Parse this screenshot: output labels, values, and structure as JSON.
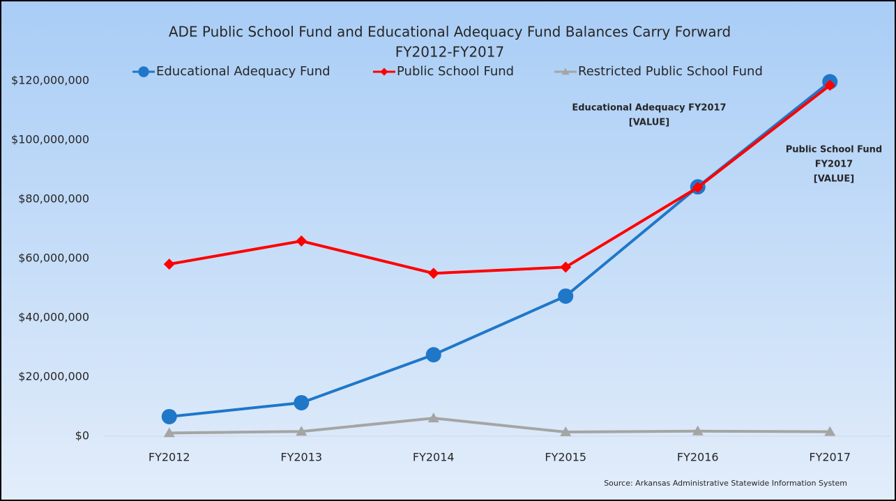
{
  "chart_data": {
    "type": "line",
    "title": [
      "ADE Public School Fund and Educational Adequacy Fund Balances Carry Forward",
      "FY2012-FY2017"
    ],
    "categories": [
      "FY2012",
      "FY2013",
      "FY2014",
      "FY2015",
      "FY2016",
      "FY2017"
    ],
    "series": [
      {
        "name": "Educational Adequacy Fund",
        "color": "#1f77c8",
        "marker": "circle",
        "values": [
          6600000,
          11300000,
          27500000,
          47300000,
          84200000,
          119700000
        ]
      },
      {
        "name": "Public School Fund",
        "color": "#ff0000",
        "marker": "diamond",
        "values": [
          58100000,
          65900000,
          55000000,
          57100000,
          84000000,
          118500000
        ]
      },
      {
        "name": "Restricted Public School Fund",
        "color": "#a5a5a5",
        "marker": "triangle",
        "values": [
          1100000,
          1600000,
          6100000,
          1400000,
          1700000,
          1500000
        ]
      }
    ],
    "ylim": [
      0,
      120000000
    ],
    "yticks": [
      {
        "value": 0,
        "label": "$0"
      },
      {
        "value": 20000000,
        "label": "$20,000,000"
      },
      {
        "value": 40000000,
        "label": "$40,000,000"
      },
      {
        "value": 60000000,
        "label": "$60,000,000"
      },
      {
        "value": 80000000,
        "label": "$80,000,000"
      },
      {
        "value": 100000000,
        "label": "$100,000,000"
      },
      {
        "value": 120000000,
        "label": "$120,000,000"
      }
    ],
    "grid": false,
    "annotations": [
      {
        "lines": [
          "Educational Adequacy FY2017",
          "[VALUE]"
        ]
      },
      {
        "lines": [
          "Public School Fund",
          "FY2017",
          "[VALUE]"
        ]
      }
    ],
    "source": "Source: Arkansas Administrative Statewide Information System"
  }
}
